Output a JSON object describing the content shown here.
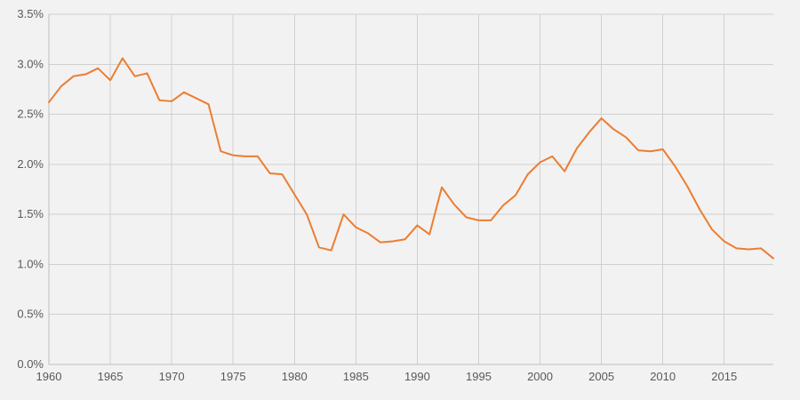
{
  "colors": {
    "background": "#f2f2f2",
    "series_line": "#ed7d31",
    "grid": "#d0d0d0",
    "tick_text": "#595959"
  },
  "chart_data": {
    "type": "line",
    "title": "",
    "xlabel": "",
    "ylabel": "",
    "grid": true,
    "legend": "none",
    "xlim": [
      1960,
      2019
    ],
    "ylim": [
      0,
      0.035
    ],
    "x_ticks": [
      "1960",
      "1965",
      "1970",
      "1975",
      "1980",
      "1985",
      "1990",
      "1995",
      "2000",
      "2005",
      "2010",
      "2015"
    ],
    "y_ticks": [
      "0.0%",
      "0.5%",
      "1.0%",
      "1.5%",
      "2.0%",
      "2.5%",
      "3.0%",
      "3.5%"
    ],
    "series": [
      {
        "color": "#ed7d31",
        "points": [
          [
            1960,
            0.0262
          ],
          [
            1961,
            0.0278
          ],
          [
            1962,
            0.0288
          ],
          [
            1963,
            0.029
          ],
          [
            1964,
            0.0296
          ],
          [
            1965,
            0.0284
          ],
          [
            1966,
            0.0306
          ],
          [
            1967,
            0.0288
          ],
          [
            1968,
            0.0291
          ],
          [
            1969,
            0.0264
          ],
          [
            1970,
            0.0263
          ],
          [
            1971,
            0.0272
          ],
          [
            1972,
            0.0266
          ],
          [
            1973,
            0.026
          ],
          [
            1974,
            0.0213
          ],
          [
            1975,
            0.0209
          ],
          [
            1976,
            0.0208
          ],
          [
            1977,
            0.0208
          ],
          [
            1978,
            0.0191
          ],
          [
            1979,
            0.019
          ],
          [
            1980,
            0.017
          ],
          [
            1981,
            0.015
          ],
          [
            1982,
            0.0117
          ],
          [
            1983,
            0.0114
          ],
          [
            1984,
            0.015
          ],
          [
            1985,
            0.0137
          ],
          [
            1986,
            0.0131
          ],
          [
            1987,
            0.0122
          ],
          [
            1988,
            0.0123
          ],
          [
            1989,
            0.0125
          ],
          [
            1990,
            0.0139
          ],
          [
            1991,
            0.013
          ],
          [
            1992,
            0.0177
          ],
          [
            1993,
            0.016
          ],
          [
            1994,
            0.0147
          ],
          [
            1995,
            0.0144
          ],
          [
            1996,
            0.0144
          ],
          [
            1997,
            0.0159
          ],
          [
            1998,
            0.0169
          ],
          [
            1999,
            0.019
          ],
          [
            2000,
            0.0202
          ],
          [
            2001,
            0.0208
          ],
          [
            2002,
            0.0193
          ],
          [
            2003,
            0.0216
          ],
          [
            2004,
            0.0232
          ],
          [
            2005,
            0.0246
          ],
          [
            2006,
            0.0235
          ],
          [
            2007,
            0.0227
          ],
          [
            2008,
            0.0214
          ],
          [
            2009,
            0.0213
          ],
          [
            2010,
            0.0215
          ],
          [
            2011,
            0.0198
          ],
          [
            2012,
            0.0178
          ],
          [
            2013,
            0.0155
          ],
          [
            2014,
            0.0135
          ],
          [
            2015,
            0.0123
          ],
          [
            2016,
            0.0116
          ],
          [
            2017,
            0.0115
          ],
          [
            2018,
            0.0116
          ],
          [
            2019,
            0.0106
          ]
        ]
      }
    ]
  }
}
